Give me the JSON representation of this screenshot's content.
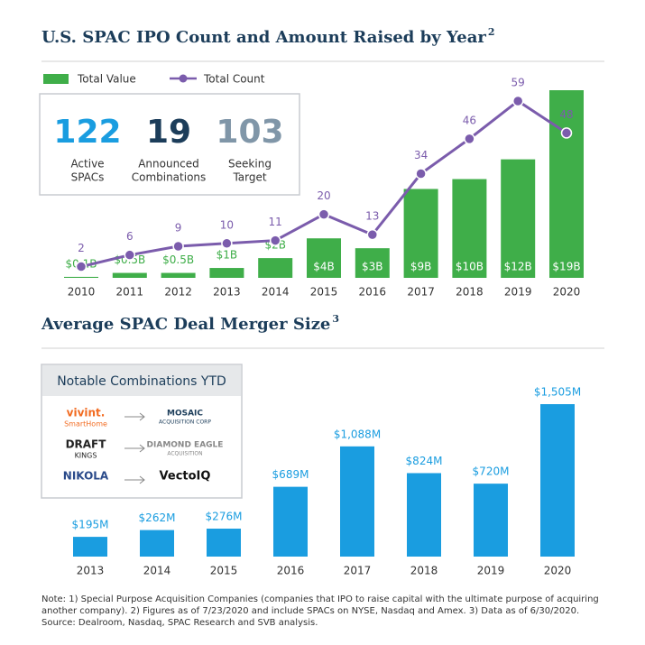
{
  "chart_data": [
    {
      "type": "bar",
      "title": "U.S. SPAC IPO Count and Amount Raised by Year",
      "title_note": "2",
      "categories": [
        "2010",
        "2011",
        "2012",
        "2013",
        "2014",
        "2015",
        "2016",
        "2017",
        "2018",
        "2019",
        "2020"
      ],
      "series": [
        {
          "name": "Total Value",
          "type": "bar",
          "color": "#3fae49",
          "values": [
            0.1,
            0.5,
            0.5,
            1,
            2,
            4,
            3,
            9,
            10,
            12,
            19
          ],
          "value_labels": [
            "$0.1B",
            "$0.5B",
            "$0.5B",
            "$1B",
            "$2B",
            "$4B",
            "$3B",
            "$9B",
            "$10B",
            "$12B",
            "$19B"
          ]
        },
        {
          "name": "Total Count",
          "type": "line",
          "color": "#7b5cac",
          "values": [
            2,
            6,
            9,
            10,
            11,
            20,
            13,
            34,
            46,
            59,
            48
          ]
        }
      ],
      "legend": "top-left"
    },
    {
      "type": "bar",
      "title": "Average SPAC Deal Merger Size",
      "title_note": "3",
      "categories": [
        "2013",
        "2014",
        "2015",
        "2016",
        "2017",
        "2018",
        "2019",
        "2020"
      ],
      "values": [
        195,
        262,
        276,
        689,
        1088,
        824,
        720,
        1505
      ],
      "value_labels": [
        "$195M",
        "$262M",
        "$276M",
        "$689M",
        "$1,088M",
        "$824M",
        "$720M",
        "$1,505M"
      ],
      "color": "#1a9de0"
    }
  ],
  "stats": [
    {
      "value": "122",
      "label": [
        "Active",
        "SPACs"
      ]
    },
    {
      "value": "19",
      "label": [
        "Announced",
        "Combinations"
      ]
    },
    {
      "value": "103",
      "label": [
        "Seeking",
        "Target"
      ]
    }
  ],
  "notable": {
    "title": "Notable Combinations YTD",
    "rows": [
      [
        "vivint.",
        "SmartHome",
        "MOSAIC",
        "ACQUISITION CORP"
      ],
      [
        "DRAFT",
        "KINGS",
        "DIAMOND EAGLE",
        "ACQUISITION"
      ],
      [
        "NIKOLA",
        "",
        "VectoIQ",
        ""
      ]
    ]
  },
  "note": [
    "Note: 1) Special Purpose Acquisition Companies (companies that IPO to raise capital with the ultimate purpose of acquiring",
    "another company). 2) Figures as of 7/23/2020 and include SPACs on NYSE, Nasdaq and Amex. 3) Data as of 6/30/2020.",
    "Source: Dealroom, Nasdaq, SPAC Research and SVB analysis."
  ]
}
